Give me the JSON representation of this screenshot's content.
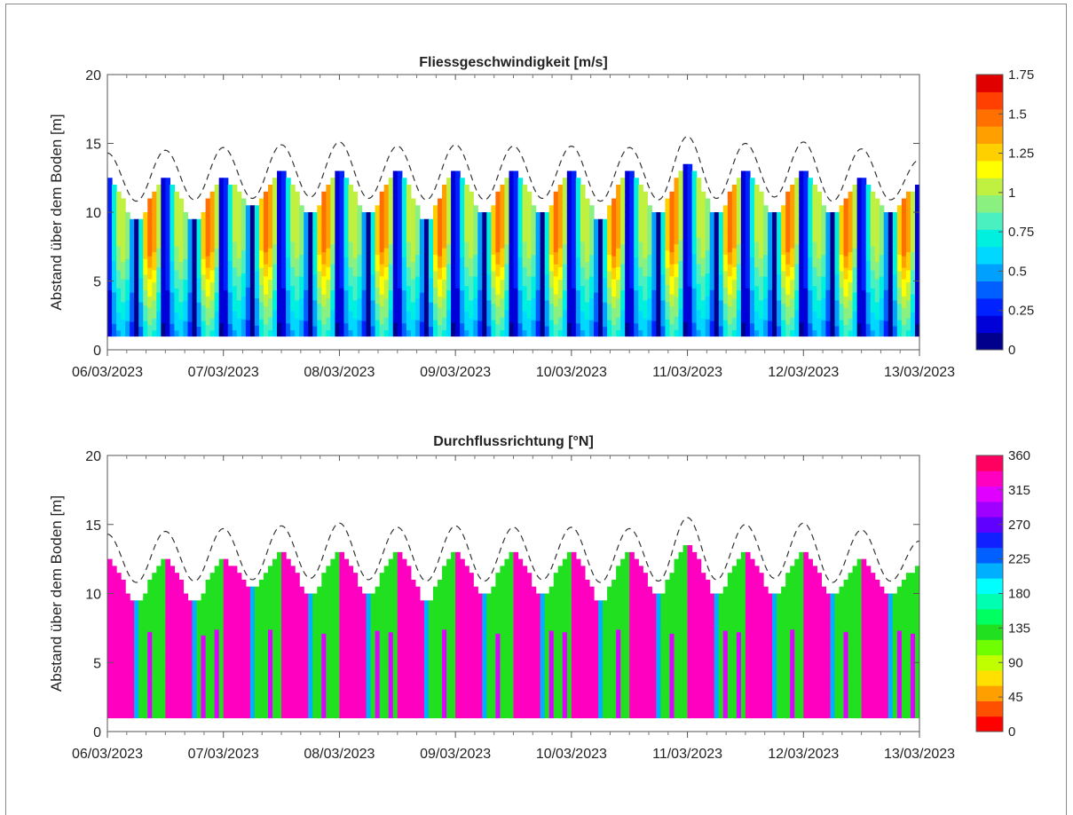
{
  "chart_data": [
    {
      "type": "heatmap",
      "title": "Fliessgeschwindigkeit [m/s]",
      "ylabel": "Abstand über dem Boden [m]",
      "xlabel": "",
      "x_tick_labels": [
        "06/03/2023",
        "07/03/2023",
        "08/03/2023",
        "09/03/2023",
        "10/03/2023",
        "11/03/2023",
        "12/03/2023",
        "13/03/2023"
      ],
      "x_range_days": [
        0,
        7
      ],
      "y_ticks": [
        0,
        5,
        10,
        15,
        20
      ],
      "ylim": [
        0,
        20
      ],
      "data_bottom_m": 1,
      "colorbar": {
        "ticks": [
          0,
          0.25,
          0.5,
          0.75,
          1,
          1.25,
          1.5,
          1.75
        ],
        "tick_labels": [
          "0",
          "0.25",
          "0.5",
          "0.75",
          "1",
          "1.25",
          "1.5",
          "1.75"
        ],
        "range": [
          0,
          1.75
        ],
        "colors": [
          "#00008c",
          "#0000d8",
          "#0022ff",
          "#0060ff",
          "#00a0ff",
          "#00d8ff",
          "#00f0e0",
          "#4af0c0",
          "#8af080",
          "#c0f040",
          "#ffff00",
          "#ffd000",
          "#ffa000",
          "#ff7000",
          "#ff4000",
          "#e00000"
        ]
      },
      "surface_envelope": {
        "description_values": "dashed water level [m] at successive turning points",
        "extrema": [
          14.3,
          10.8,
          14.5,
          10.9,
          14.7,
          11.0,
          14.9,
          11.1,
          15.1,
          11.0,
          14.8,
          10.9,
          14.9,
          10.9,
          14.8,
          11.0,
          14.8,
          10.8,
          14.7,
          10.9,
          15.5,
          11.0,
          15.0,
          11.1,
          15.1,
          10.8,
          14.6,
          10.9,
          13.8
        ],
        "step_levels": [
          12.5,
          9.5,
          12.5,
          9.5,
          12.5,
          10.5,
          13,
          10,
          13,
          10,
          13,
          9.5,
          13,
          10,
          13,
          10,
          13,
          9.5,
          13,
          10,
          13.5,
          10,
          13,
          10,
          13,
          10,
          12.5,
          10,
          12
        ]
      },
      "slack_water_times_days": [
        0.3,
        0.5,
        0.8,
        1.0,
        1.3,
        1.5,
        1.8,
        2.0,
        2.3,
        2.5,
        2.8,
        3.0,
        3.3,
        3.55,
        3.8,
        4.05,
        4.3,
        4.55,
        4.8,
        5.05,
        5.3,
        5.55,
        5.8,
        6.05,
        6.3,
        6.55,
        6.8
      ]
    },
    {
      "type": "heatmap",
      "title": "Durchflussrichtung [°N]",
      "ylabel": "Abstand über dem Boden [m]",
      "xlabel": "",
      "x_tick_labels": [
        "06/03/2023",
        "07/03/2023",
        "08/03/2023",
        "09/03/2023",
        "10/03/2023",
        "11/03/2023",
        "12/03/2023",
        "13/03/2023"
      ],
      "x_range_days": [
        0,
        7
      ],
      "y_ticks": [
        0,
        5,
        10,
        15,
        20
      ],
      "ylim": [
        0,
        20
      ],
      "data_bottom_m": 1,
      "colorbar": {
        "ticks": [
          0,
          45,
          90,
          135,
          180,
          225,
          270,
          315,
          360
        ],
        "tick_labels": [
          "0",
          "45",
          "90",
          "135",
          "180",
          "225",
          "270",
          "315",
          "360"
        ],
        "range": [
          0,
          360
        ],
        "colors": [
          "#ff0000",
          "#ff5000",
          "#ffa000",
          "#ffe000",
          "#c0ff00",
          "#70ff00",
          "#20e020",
          "#00ff60",
          "#00ffb0",
          "#00ffff",
          "#00b0ff",
          "#0060ff",
          "#1020ff",
          "#6000ff",
          "#a000ff",
          "#e000ff",
          "#ff00c0",
          "#ff0060"
        ]
      },
      "direction_values": {
        "flood": 130,
        "ebb": 320
      },
      "surface_envelope": {
        "extrema": [
          14.3,
          10.8,
          14.5,
          10.9,
          14.7,
          11.0,
          14.9,
          11.1,
          15.1,
          11.0,
          14.8,
          10.9,
          14.9,
          10.9,
          14.8,
          11.0,
          14.8,
          10.8,
          14.7,
          10.9,
          15.5,
          11.0,
          15.0,
          11.1,
          15.1,
          10.8,
          14.6,
          10.9,
          13.8
        ],
        "step_levels": [
          12.5,
          9.5,
          12.5,
          9.5,
          12.5,
          10.5,
          13,
          10,
          13,
          10,
          13,
          9.5,
          13,
          10,
          13,
          10,
          13,
          9.5,
          13,
          10,
          13.5,
          10,
          13,
          10,
          13,
          10,
          12.5,
          10,
          12
        ]
      }
    }
  ]
}
